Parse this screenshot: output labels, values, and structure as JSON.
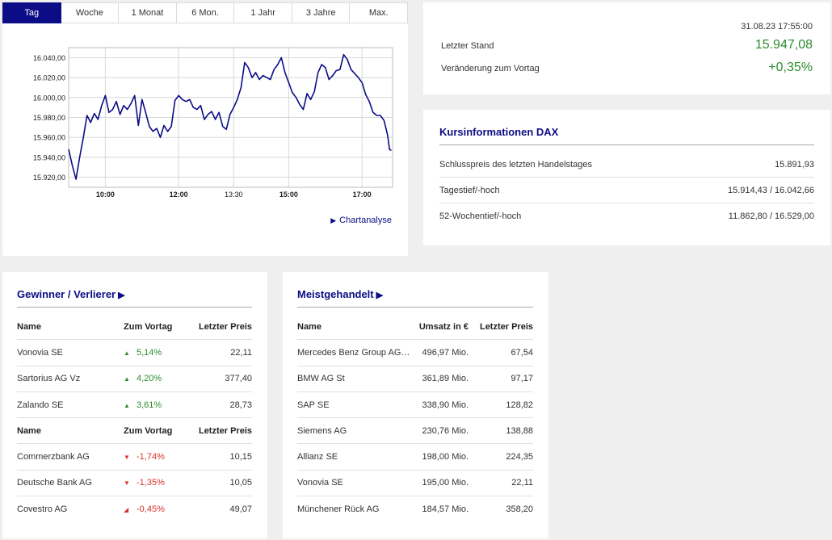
{
  "tabs": [
    {
      "label": "Tag",
      "active": true
    },
    {
      "label": "Woche",
      "active": false
    },
    {
      "label": "1 Monat",
      "active": false
    },
    {
      "label": "6 Mon.",
      "active": false
    },
    {
      "label": "1 Jahr",
      "active": false
    },
    {
      "label": "3 Jahre",
      "active": false
    },
    {
      "label": "Max.",
      "active": false
    }
  ],
  "chart_link": "Chartanalyse",
  "chart_data": {
    "type": "line",
    "title": "",
    "xlabel": "",
    "ylabel": "",
    "y_ticks": [
      15920,
      15940,
      15960,
      15980,
      16000,
      16020,
      16040
    ],
    "y_tick_labels": [
      "15.920,00",
      "15.940,00",
      "15.960,00",
      "15.980,00",
      "16.000,00",
      "16.020,00",
      "16.040,00"
    ],
    "x_ticks": [
      "10:00",
      "12:00",
      "13:30",
      "15:00",
      "17:00"
    ],
    "x_ticks_bold": [
      true,
      true,
      false,
      true,
      true
    ],
    "x_tick_times": [
      "10:00",
      "12:00",
      "13:30",
      "15:00",
      "17:00"
    ],
    "xlim": [
      "09:00",
      "17:50"
    ],
    "ylim": [
      15910,
      16050
    ],
    "grid": true,
    "color": "#0b0c86",
    "series": [
      {
        "x": [
          "09:00",
          "09:06",
          "09:12",
          "09:18",
          "09:24",
          "09:30",
          "09:36",
          "09:42",
          "09:48",
          "09:54",
          "10:00",
          "10:06",
          "10:12",
          "10:18",
          "10:24",
          "10:30",
          "10:36",
          "10:42",
          "10:48",
          "10:54",
          "11:00",
          "11:06",
          "11:12",
          "11:18",
          "11:24",
          "11:30",
          "11:36",
          "11:42",
          "11:48",
          "11:54",
          "12:00",
          "12:06",
          "12:12",
          "12:18",
          "12:24",
          "12:30",
          "12:36",
          "12:42",
          "12:48",
          "12:54",
          "13:00",
          "13:06",
          "13:12",
          "13:18",
          "13:24",
          "13:30",
          "13:36",
          "13:42",
          "13:48",
          "13:54",
          "14:00",
          "14:06",
          "14:12",
          "14:18",
          "14:24",
          "14:30",
          "14:36",
          "14:42",
          "14:48",
          "14:54",
          "15:00",
          "15:06",
          "15:12",
          "15:18",
          "15:24",
          "15:30",
          "15:36",
          "15:42",
          "15:48",
          "15:54",
          "16:00",
          "16:06",
          "16:12",
          "16:18",
          "16:24",
          "16:30",
          "16:36",
          "16:42",
          "16:48",
          "16:54",
          "17:00",
          "17:06",
          "17:12",
          "17:18",
          "17:24",
          "17:30",
          "17:36",
          "17:42",
          "17:45",
          "17:48"
        ],
        "values": [
          15948,
          15932,
          15918,
          15940,
          15960,
          15982,
          15975,
          15984,
          15978,
          15992,
          16002,
          15985,
          15988,
          15996,
          15983,
          15992,
          15988,
          15994,
          16002,
          15972,
          15998,
          15985,
          15971,
          15966,
          15969,
          15960,
          15972,
          15966,
          15971,
          15997,
          16002,
          15998,
          15996,
          15998,
          15990,
          15988,
          15992,
          15978,
          15983,
          15986,
          15978,
          15985,
          15971,
          15968,
          15983,
          15990,
          15998,
          16010,
          16035,
          16030,
          16020,
          16025,
          16018,
          16022,
          16020,
          16018,
          16028,
          16033,
          16040,
          16025,
          16015,
          16005,
          16000,
          15993,
          15988,
          16004,
          15998,
          16006,
          16025,
          16033,
          16030,
          16018,
          16022,
          16027,
          16028,
          16043,
          16038,
          16028,
          16024,
          16020,
          16015,
          16003,
          15996,
          15985,
          15982,
          15982,
          15977,
          15962,
          15948,
          15947
        ]
      }
    ]
  },
  "quote": {
    "timestamp": "31.08.23 17:55:00",
    "last_label": "Letzter Stand",
    "last_value": "15.947,08",
    "change_label": "Veränderung zum Vortag",
    "change_value": "+0,35%",
    "positive_color": "#2e8b2e"
  },
  "info": {
    "title": "Kursinformationen DAX",
    "rows": [
      {
        "label": "Schlusspreis des letzten Handelstages",
        "value": "15.891,93"
      },
      {
        "label": "Tagestief/-hoch",
        "value": "15.914,43 / 16.042,66"
      },
      {
        "label": "52-Wochentief/-hoch",
        "value": "11.862,80 / 16.529,00"
      }
    ]
  },
  "gainers": {
    "title": "Gewinner / Verlierer",
    "title_icon": "play-triangle-icon",
    "head": {
      "name": "Name",
      "change": "Zum Vortag",
      "price": "Letzter Preis"
    },
    "winners": [
      {
        "name": "Vonovia SE",
        "change": "5,14%",
        "price": "22,11",
        "icon": "up-triangle-icon"
      },
      {
        "name": "Sartorius AG Vz",
        "change": "4,20%",
        "price": "377,40",
        "icon": "up-triangle-icon"
      },
      {
        "name": "Zalando SE",
        "change": "3,61%",
        "price": "28,73",
        "icon": "up-triangle-icon"
      }
    ],
    "losers": [
      {
        "name": "Commerzbank AG",
        "change": "-1,74%",
        "price": "10,15",
        "icon": "down-triangle-icon"
      },
      {
        "name": "Deutsche Bank AG",
        "change": "-1,35%",
        "price": "10,05",
        "icon": "down-triangle-icon"
      },
      {
        "name": "Covestro AG",
        "change": "-0,45%",
        "price": "49,07",
        "icon": "down-right-triangle-icon"
      }
    ],
    "up_color": "#2e8b2e",
    "down_color": "#d9342b"
  },
  "most_traded": {
    "title": "Meistgehandelt",
    "title_icon": "play-triangle-icon",
    "head": {
      "name": "Name",
      "volume": "Umsatz in €",
      "price": "Letzter Preis"
    },
    "rows": [
      {
        "name": "Mercedes Benz Group AG ...",
        "volume": "496,97 Mio.",
        "price": "67,54"
      },
      {
        "name": "BMW AG St",
        "volume": "361,89 Mio.",
        "price": "97,17"
      },
      {
        "name": "SAP SE",
        "volume": "338,90 Mio.",
        "price": "128,82"
      },
      {
        "name": "Siemens AG",
        "volume": "230,76 Mio.",
        "price": "138,88"
      },
      {
        "name": "Allianz SE",
        "volume": "198,00 Mio.",
        "price": "224,35"
      },
      {
        "name": "Vonovia SE",
        "volume": "195,00 Mio.",
        "price": "22,11"
      },
      {
        "name": "Münchener Rück AG",
        "volume": "184,57 Mio.",
        "price": "358,20"
      }
    ]
  }
}
